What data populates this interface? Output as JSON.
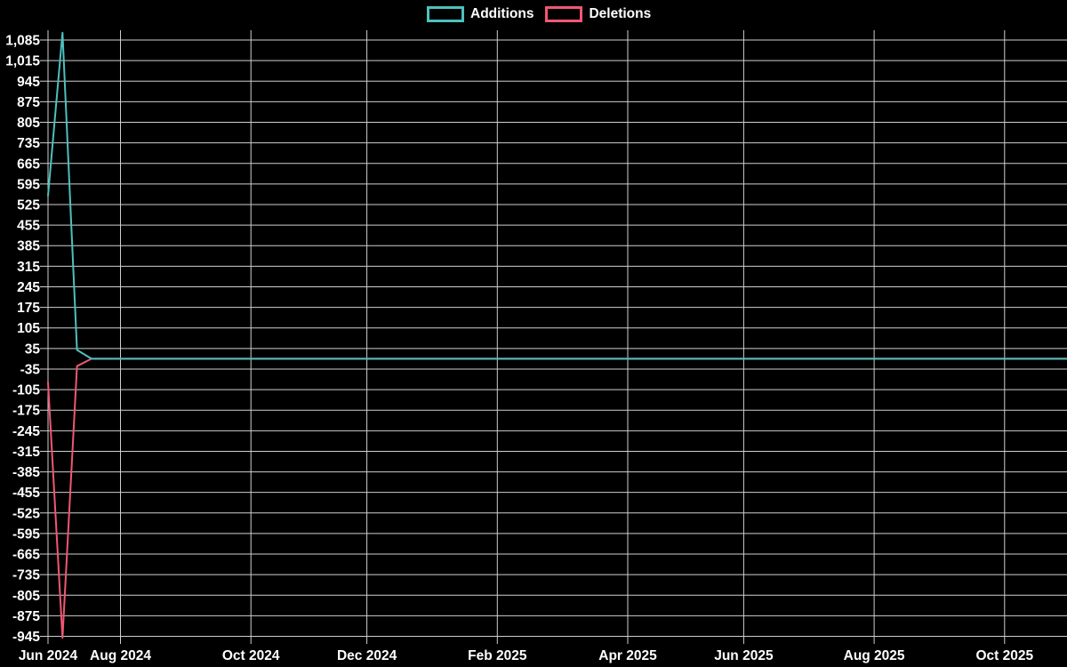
{
  "page": {
    "background_color": "#000000",
    "text_color": "#ffffff",
    "grid_color": "#cfcfcf"
  },
  "legend": {
    "items": [
      {
        "label": "Additions",
        "color": "#4ec0bd"
      },
      {
        "label": "Deletions",
        "color": "#f05774"
      }
    ]
  },
  "chart_data": {
    "type": "line",
    "title": "",
    "xlabel": "",
    "ylabel": "",
    "grid": true,
    "legend_position": "top-center",
    "x_axis": {
      "unit": "week",
      "tick_labels": [
        "Jun 2024",
        "Aug 2024",
        "Oct 2024",
        "Dec 2024",
        "Feb 2025",
        "Apr 2025",
        "Jun 2025",
        "Aug 2025",
        "Oct 2025"
      ],
      "tick_week_indices": [
        0,
        5,
        14,
        22,
        31,
        40,
        48,
        57,
        66
      ],
      "range_weeks": [
        0,
        71
      ]
    },
    "y_axis": {
      "max_tick": 1085,
      "min_tick": -945,
      "step": 70,
      "tick_labels": [
        "1,085",
        "1,015",
        "945",
        "875",
        "805",
        "735",
        "665",
        "595",
        "525",
        "455",
        "385",
        "315",
        "245",
        "175",
        "105",
        "35",
        "-35",
        "-105",
        "-175",
        "-245",
        "-315",
        "-385",
        "-455",
        "-525",
        "-595",
        "-665",
        "-735",
        "-805",
        "-875",
        "-945"
      ],
      "tick_values": [
        1085,
        1015,
        945,
        875,
        805,
        735,
        665,
        595,
        525,
        455,
        385,
        315,
        245,
        175,
        105,
        35,
        -35,
        -105,
        -175,
        -245,
        -315,
        -385,
        -455,
        -525,
        -595,
        -665,
        -735,
        -805,
        -875,
        -945
      ]
    },
    "series": [
      {
        "name": "Additions",
        "color": "#4ec0bd",
        "values": [
          555,
          1110,
          30,
          0,
          0,
          0,
          0,
          0,
          0,
          0,
          0,
          0,
          0,
          0,
          0,
          0,
          0,
          0,
          0,
          0,
          0,
          0,
          0,
          0,
          0,
          0,
          0,
          0,
          0,
          0,
          0,
          0,
          0,
          0,
          0,
          0,
          0,
          0,
          0,
          0,
          0,
          0,
          0,
          0,
          0,
          0,
          0,
          0,
          0,
          0,
          0,
          0,
          0,
          0,
          0,
          0,
          0,
          0,
          0,
          0,
          0,
          0,
          0,
          0,
          0,
          0,
          0,
          0,
          0,
          0,
          0,
          0
        ]
      },
      {
        "name": "Deletions",
        "color": "#f05774",
        "values": [
          -80,
          -950,
          -25,
          0,
          0,
          0,
          0,
          0,
          0,
          0,
          0,
          0,
          0,
          0,
          0,
          0,
          0,
          0,
          0,
          0,
          0,
          0,
          0,
          0,
          0,
          0,
          0,
          0,
          0,
          0,
          0,
          0,
          0,
          0,
          0,
          0,
          0,
          0,
          0,
          0,
          0,
          0,
          0,
          0,
          0,
          0,
          0,
          0,
          0,
          0,
          0,
          0,
          0,
          0,
          0,
          0,
          0,
          0,
          0,
          0,
          0,
          0,
          0,
          0,
          0,
          0,
          0,
          0,
          0,
          0,
          0,
          0
        ]
      }
    ]
  }
}
